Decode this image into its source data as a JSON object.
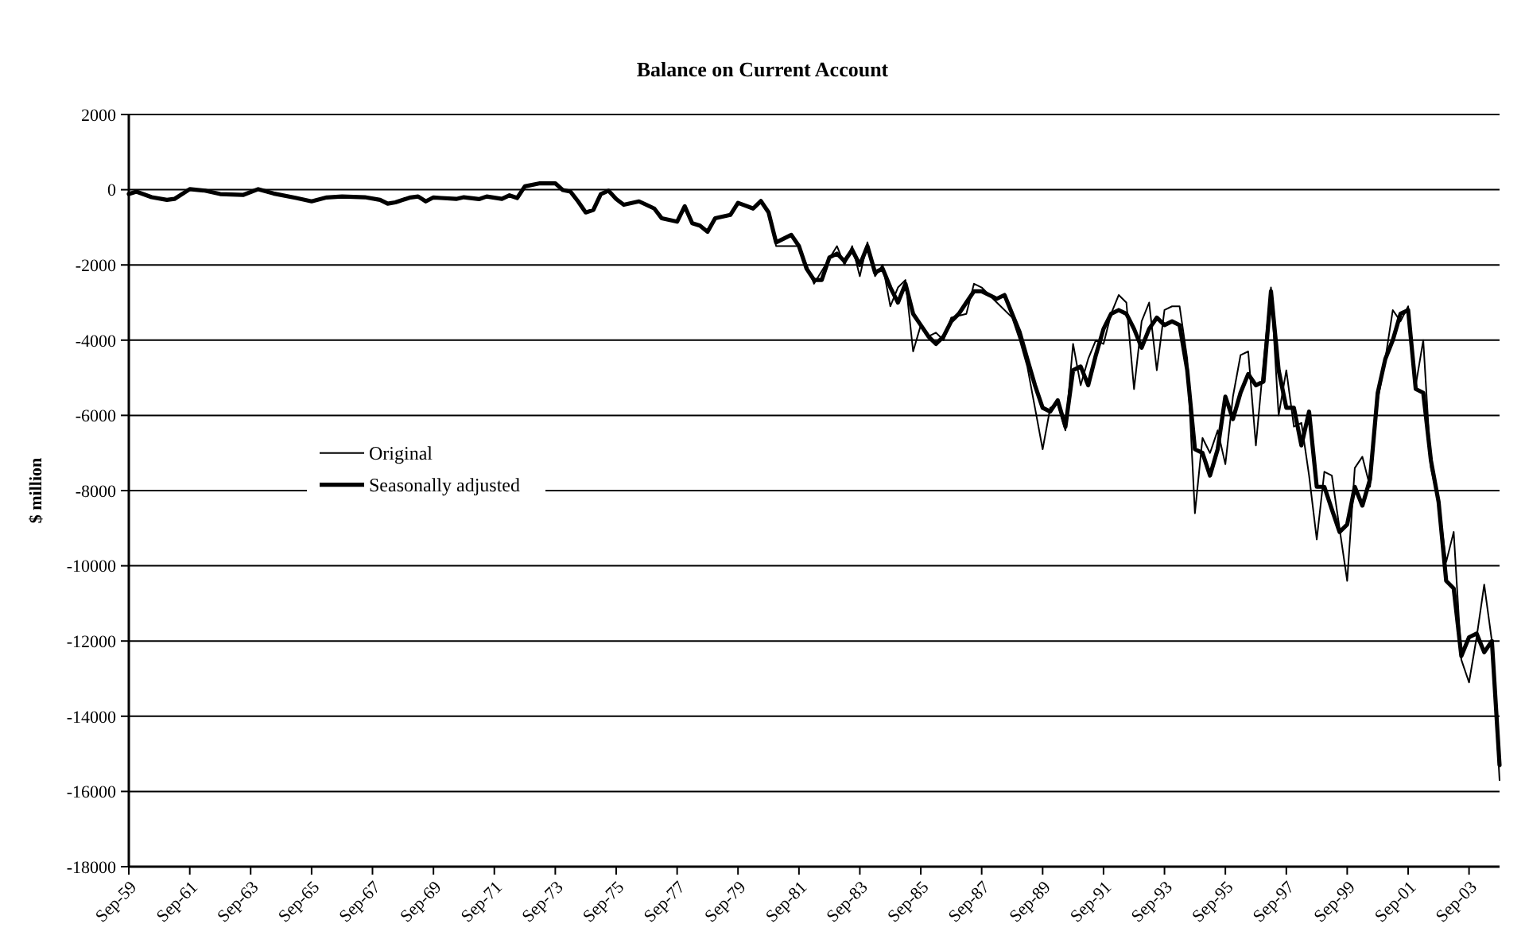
{
  "chart_data": {
    "type": "line",
    "title": "Balance on Current Account",
    "ylabel": "$ million",
    "xlim": [
      "1959-09",
      "2004-09"
    ],
    "xticks": [
      {
        "value": "1959-09",
        "label": "Sep-59"
      },
      {
        "value": "1961-09",
        "label": "Sep-61"
      },
      {
        "value": "1963-09",
        "label": "Sep-63"
      },
      {
        "value": "1965-09",
        "label": "Sep-65"
      },
      {
        "value": "1967-09",
        "label": "Sep-67"
      },
      {
        "value": "1969-09",
        "label": "Sep-69"
      },
      {
        "value": "1971-09",
        "label": "Sep-71"
      },
      {
        "value": "1973-09",
        "label": "Sep-73"
      },
      {
        "value": "1975-09",
        "label": "Sep-75"
      },
      {
        "value": "1977-09",
        "label": "Sep-77"
      },
      {
        "value": "1979-09",
        "label": "Sep-79"
      },
      {
        "value": "1981-09",
        "label": "Sep-81"
      },
      {
        "value": "1983-09",
        "label": "Sep-83"
      },
      {
        "value": "1985-09",
        "label": "Sep-85"
      },
      {
        "value": "1987-09",
        "label": "Sep-87"
      },
      {
        "value": "1989-09",
        "label": "Sep-89"
      },
      {
        "value": "1991-09",
        "label": "Sep-91"
      },
      {
        "value": "1993-09",
        "label": "Sep-93"
      },
      {
        "value": "1995-09",
        "label": "Sep-95"
      },
      {
        "value": "1997-09",
        "label": "Sep-97"
      },
      {
        "value": "1999-09",
        "label": "Sep-99"
      },
      {
        "value": "2001-09",
        "label": "Sep-01"
      },
      {
        "value": "2003-09",
        "label": "Sep-03"
      }
    ],
    "ylim": [
      -18000,
      2000
    ],
    "yticks": [
      -18000,
      -16000,
      -14000,
      -12000,
      -10000,
      -8000,
      -6000,
      -4000,
      -2000,
      0,
      2000
    ],
    "grid": "y",
    "legend": "left",
    "marker": "none",
    "line_style": "solid",
    "series": [
      {
        "name": "Original",
        "color": "#000000",
        "x": [
          "1959-09",
          "1959-12",
          "1960-06",
          "1960-12",
          "1961-03",
          "1961-09",
          "1962-03",
          "1962-09",
          "1963-06",
          "1963-12",
          "1964-06",
          "1965-03",
          "1965-09",
          "1966-03",
          "1966-09",
          "1967-06",
          "1967-12",
          "1968-03",
          "1968-06",
          "1968-12",
          "1969-03",
          "1969-06",
          "1969-09",
          "1969-12",
          "1970-06",
          "1970-09",
          "1971-03",
          "1971-06",
          "1971-12",
          "1972-03",
          "1972-06",
          "1972-09",
          "1973-03",
          "1973-09",
          "1973-12",
          "1974-03",
          "1974-06",
          "1974-09",
          "1974-12",
          "1975-03",
          "1975-06",
          "1975-09",
          "1975-12",
          "1976-06",
          "1976-12",
          "1977-03",
          "1977-09",
          "1977-12",
          "1978-03",
          "1978-06",
          "1978-09",
          "1978-12",
          "1979-06",
          "1979-09",
          "1980-03",
          "1980-06",
          "1980-09",
          "1980-12",
          "1981-09",
          "1982-03",
          "1982-12",
          "1983-03",
          "1983-06",
          "1983-09",
          "1983-12",
          "1984-03",
          "1984-06",
          "1984-09",
          "1984-12",
          "1985-03",
          "1985-06",
          "1985-09",
          "1985-12",
          "1986-03",
          "1986-06",
          "1986-09",
          "1987-03",
          "1987-06",
          "1987-09",
          "1988-03",
          "1988-09",
          "1988-12",
          "1989-03",
          "1989-06",
          "1989-09",
          "1989-12",
          "1990-03",
          "1990-06",
          "1990-09",
          "1990-12",
          "1991-03",
          "1991-06",
          "1991-09",
          "1991-12",
          "1992-03",
          "1992-06",
          "1992-09",
          "1992-12",
          "1993-03",
          "1993-06",
          "1993-09",
          "1993-12",
          "1994-03",
          "1994-06",
          "1994-09",
          "1994-12",
          "1995-03",
          "1995-06",
          "1995-09",
          "1995-12",
          "1996-03",
          "1996-06",
          "1996-09",
          "1996-12",
          "1997-03",
          "1997-06",
          "1997-09",
          "1997-12",
          "1998-03",
          "1998-06",
          "1998-09",
          "1998-12",
          "1999-03",
          "1999-06",
          "1999-09",
          "1999-12",
          "2000-03",
          "2000-06",
          "2000-09",
          "2000-12",
          "2001-03",
          "2001-06",
          "2001-09",
          "2001-12",
          "2002-03",
          "2002-06",
          "2002-09",
          "2002-12",
          "2003-03",
          "2003-06",
          "2003-09",
          "2003-12",
          "2004-03",
          "2004-06",
          "2004-09"
        ],
        "values": [
          -115,
          -50,
          -200,
          -270,
          -245,
          15,
          -25,
          -115,
          -140,
          15,
          -100,
          -220,
          -310,
          -205,
          -180,
          -200,
          -270,
          -370,
          -335,
          -205,
          -180,
          -310,
          -205,
          -220,
          -245,
          -200,
          -250,
          -180,
          -245,
          -150,
          -220,
          90,
          170,
          170,
          -10,
          -50,
          -310,
          -605,
          -540,
          -115,
          -25,
          -245,
          -400,
          -310,
          -500,
          -760,
          -850,
          -440,
          -890,
          -955,
          -1120,
          -760,
          -670,
          -350,
          -500,
          -300,
          -600,
          -1500,
          -1500,
          -2500,
          -1500,
          -2000,
          -1500,
          -2300,
          -1400,
          -2300,
          -2000,
          -3100,
          -2600,
          -2400,
          -4300,
          -3600,
          -3900,
          -3800,
          -4000,
          -3400,
          -3300,
          -2500,
          -2600,
          -3000,
          -3400,
          -4000,
          -4700,
          -5800,
          -6900,
          -5800,
          -5700,
          -6400,
          -4100,
          -5200,
          -4500,
          -4000,
          -4100,
          -3300,
          -2800,
          -3000,
          -5300,
          -3500,
          -3000,
          -4800,
          -3200,
          -3100,
          -3100,
          -4500,
          -8600,
          -6600,
          -7000,
          -6400,
          -7300,
          -5500,
          -4400,
          -4300,
          -6800,
          -4600,
          -2600,
          -6000,
          -4800,
          -6300,
          -6200,
          -7600,
          -9300,
          -7500,
          -7600,
          -9000,
          -10400,
          -7400,
          -7100,
          -7900,
          -5600,
          -4500,
          -3200,
          -3500,
          -3100,
          -5200,
          -4000,
          -7400,
          -8300,
          -9900,
          -9100,
          -12500,
          -13100,
          -11900,
          -10500,
          -12000,
          -15700
        ]
      },
      {
        "name": "Seasonally adjusted",
        "color": "#000000",
        "x": [
          "1959-09",
          "1959-12",
          "1960-06",
          "1960-12",
          "1961-03",
          "1961-09",
          "1962-03",
          "1962-09",
          "1963-06",
          "1963-12",
          "1964-06",
          "1965-03",
          "1965-09",
          "1966-03",
          "1966-09",
          "1967-06",
          "1967-12",
          "1968-03",
          "1968-06",
          "1968-12",
          "1969-03",
          "1969-06",
          "1969-09",
          "1969-12",
          "1970-06",
          "1970-09",
          "1971-03",
          "1971-06",
          "1971-12",
          "1972-03",
          "1972-06",
          "1972-09",
          "1973-03",
          "1973-09",
          "1973-12",
          "1974-03",
          "1974-06",
          "1974-09",
          "1974-12",
          "1975-03",
          "1975-06",
          "1975-09",
          "1975-12",
          "1976-06",
          "1976-12",
          "1977-03",
          "1977-09",
          "1977-12",
          "1978-03",
          "1978-06",
          "1978-09",
          "1978-12",
          "1979-06",
          "1979-09",
          "1980-03",
          "1980-06",
          "1980-09",
          "1980-12",
          "1981-06",
          "1981-09",
          "1981-12",
          "1982-03",
          "1982-06",
          "1982-09",
          "1982-12",
          "1983-03",
          "1983-06",
          "1983-09",
          "1983-12",
          "1984-03",
          "1984-06",
          "1984-09",
          "1984-12",
          "1985-03",
          "1985-06",
          "1985-09",
          "1985-12",
          "1986-03",
          "1986-06",
          "1986-09",
          "1986-12",
          "1987-03",
          "1987-06",
          "1987-09",
          "1988-03",
          "1988-06",
          "1988-09",
          "1988-12",
          "1989-03",
          "1989-06",
          "1989-09",
          "1989-12",
          "1990-03",
          "1990-06",
          "1990-09",
          "1990-12",
          "1991-03",
          "1991-06",
          "1991-09",
          "1991-12",
          "1992-03",
          "1992-06",
          "1992-09",
          "1992-12",
          "1993-03",
          "1993-06",
          "1993-09",
          "1993-12",
          "1994-03",
          "1994-06",
          "1994-09",
          "1994-12",
          "1995-03",
          "1995-06",
          "1995-09",
          "1995-12",
          "1996-03",
          "1996-06",
          "1996-09",
          "1996-12",
          "1997-03",
          "1997-06",
          "1997-09",
          "1997-12",
          "1998-03",
          "1998-06",
          "1998-09",
          "1998-12",
          "1999-03",
          "1999-06",
          "1999-09",
          "1999-12",
          "2000-03",
          "2000-06",
          "2000-09",
          "2000-12",
          "2001-03",
          "2001-06",
          "2001-09",
          "2001-12",
          "2002-03",
          "2002-06",
          "2002-09",
          "2002-12",
          "2003-03",
          "2003-06",
          "2003-09",
          "2003-12",
          "2004-03",
          "2004-06",
          "2004-09"
        ],
        "values": [
          -115,
          -50,
          -200,
          -270,
          -245,
          15,
          -25,
          -115,
          -140,
          15,
          -100,
          -220,
          -310,
          -205,
          -180,
          -200,
          -270,
          -370,
          -335,
          -205,
          -180,
          -310,
          -205,
          -220,
          -245,
          -200,
          -250,
          -180,
          -245,
          -150,
          -220,
          90,
          170,
          170,
          -10,
          -50,
          -310,
          -605,
          -540,
          -115,
          -25,
          -245,
          -400,
          -310,
          -500,
          -760,
          -850,
          -440,
          -890,
          -955,
          -1120,
          -760,
          -670,
          -350,
          -500,
          -300,
          -600,
          -1400,
          -1200,
          -1500,
          -2100,
          -2400,
          -2400,
          -1800,
          -1700,
          -1900,
          -1600,
          -2000,
          -1500,
          -2200,
          -2100,
          -2600,
          -3000,
          -2500,
          -3300,
          -3600,
          -3900,
          -4100,
          -3900,
          -3500,
          -3300,
          -3000,
          -2700,
          -2700,
          -2900,
          -2800,
          -3300,
          -3800,
          -4500,
          -5200,
          -5800,
          -5900,
          -5600,
          -6300,
          -4800,
          -4700,
          -5200,
          -4400,
          -3700,
          -3300,
          -3200,
          -3300,
          -3700,
          -4200,
          -3700,
          -3400,
          -3600,
          -3500,
          -3600,
          -4800,
          -6900,
          -7000,
          -7600,
          -6900,
          -5500,
          -6100,
          -5400,
          -4900,
          -5200,
          -5100,
          -2700,
          -4800,
          -5800,
          -5800,
          -6800,
          -5900,
          -7900,
          -7900,
          -8500,
          -9100,
          -8900,
          -7900,
          -8400,
          -7700,
          -5400,
          -4500,
          -4000,
          -3300,
          -3200,
          -5300,
          -5400,
          -7200,
          -8300,
          -10400,
          -10600,
          -12400,
          -11900,
          -11800,
          -12300,
          -12000,
          -15300
        ]
      }
    ]
  }
}
